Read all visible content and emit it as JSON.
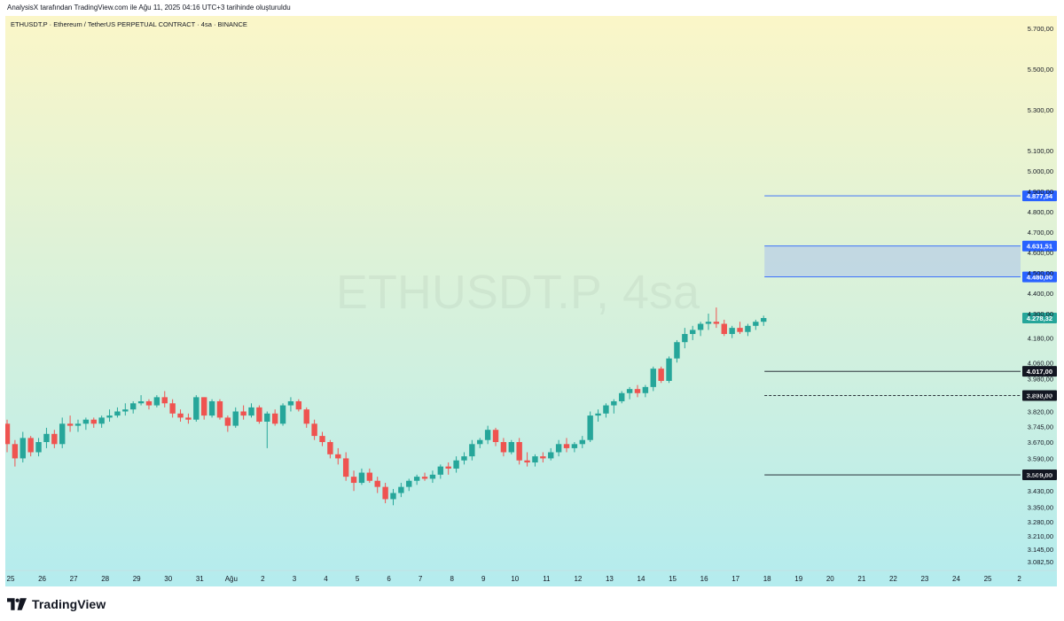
{
  "header": {
    "note": "AnalysisX tarafından TradingView.com ile Ağu 11, 2025 04:16 UTC+3 tarihinde oluşturuldu"
  },
  "symbol": {
    "label": "ETHUSDT.P · Ethereum / TetherUS PERPETUAL CONTRACT · 4sa · BINANCE",
    "watermark": "ETHUSDT.P, 4sa"
  },
  "footer": {
    "brand": "TradingView",
    "logo_icon": "tradingview-logo-icon"
  },
  "colors": {
    "up": "#26a69a",
    "down": "#ef5350",
    "level_blue": "#2962ff",
    "level_black": "#131722",
    "zone_fill": "#b8cfe6",
    "bg_top": "#fbf6c8",
    "bg_bottom": "#b4ecee"
  },
  "chart_data": {
    "type": "candlestick",
    "ylim": [
      3040,
      5760
    ],
    "y_ticks": [
      {
        "v": 5700,
        "label": "5.700,00"
      },
      {
        "v": 5500,
        "label": "5.500,00"
      },
      {
        "v": 5300,
        "label": "5.300,00"
      },
      {
        "v": 5100,
        "label": "5.100,00"
      },
      {
        "v": 5000,
        "label": "5.000,00"
      },
      {
        "v": 4900,
        "label": "4.900,00"
      },
      {
        "v": 4800,
        "label": "4.800,00"
      },
      {
        "v": 4700,
        "label": "4.700,00"
      },
      {
        "v": 4600,
        "label": "4.600,00"
      },
      {
        "v": 4500,
        "label": "4.500,00"
      },
      {
        "v": 4400,
        "label": "4.400,00"
      },
      {
        "v": 4300,
        "label": "4.300,00"
      },
      {
        "v": 4180,
        "label": "4.180,00"
      },
      {
        "v": 4060,
        "label": "4.060,00"
      },
      {
        "v": 3980,
        "label": "3.980,00"
      },
      {
        "v": 3900,
        "label": "3.900,00"
      },
      {
        "v": 3820,
        "label": "3.820,00"
      },
      {
        "v": 3745,
        "label": "3.745,00"
      },
      {
        "v": 3670,
        "label": "3.670,00"
      },
      {
        "v": 3590,
        "label": "3.590,00"
      },
      {
        "v": 3510,
        "label": "3.510,00"
      },
      {
        "v": 3430,
        "label": "3.430,00"
      },
      {
        "v": 3350,
        "label": "3.350,00"
      },
      {
        "v": 3280,
        "label": "3.280,00"
      },
      {
        "v": 3210,
        "label": "3.210,00"
      },
      {
        "v": 3145,
        "label": "3.145,00"
      },
      {
        "v": 3082.5,
        "label": "3.082,50"
      }
    ],
    "x_ticks": [
      "25",
      "26",
      "27",
      "28",
      "29",
      "30",
      "31",
      "Ağu",
      "2",
      "3",
      "4",
      "5",
      "6",
      "7",
      "8",
      "9",
      "10",
      "11",
      "12",
      "13",
      "14",
      "15",
      "16",
      "17",
      "18",
      "19",
      "20",
      "21",
      "22",
      "23",
      "24",
      "25",
      "2"
    ],
    "candles": [
      [
        3760,
        3780,
        3620,
        3660
      ],
      [
        3660,
        3680,
        3550,
        3590
      ],
      [
        3590,
        3720,
        3570,
        3690
      ],
      [
        3690,
        3700,
        3600,
        3620
      ],
      [
        3620,
        3690,
        3600,
        3670
      ],
      [
        3670,
        3740,
        3640,
        3710
      ],
      [
        3710,
        3730,
        3640,
        3660
      ],
      [
        3660,
        3790,
        3640,
        3760
      ],
      [
        3760,
        3800,
        3720,
        3750
      ],
      [
        3750,
        3780,
        3720,
        3760
      ],
      [
        3760,
        3790,
        3730,
        3780
      ],
      [
        3780,
        3790,
        3740,
        3760
      ],
      [
        3760,
        3800,
        3740,
        3790
      ],
      [
        3790,
        3830,
        3770,
        3800
      ],
      [
        3800,
        3840,
        3790,
        3820
      ],
      [
        3820,
        3860,
        3800,
        3830
      ],
      [
        3830,
        3870,
        3810,
        3860
      ],
      [
        3860,
        3900,
        3850,
        3870
      ],
      [
        3870,
        3880,
        3830,
        3850
      ],
      [
        3850,
        3900,
        3840,
        3890
      ],
      [
        3890,
        3920,
        3840,
        3860
      ],
      [
        3860,
        3880,
        3790,
        3810
      ],
      [
        3810,
        3830,
        3770,
        3790
      ],
      [
        3790,
        3810,
        3760,
        3780
      ],
      [
        3780,
        3900,
        3770,
        3890
      ],
      [
        3890,
        3890,
        3780,
        3800
      ],
      [
        3800,
        3880,
        3790,
        3870
      ],
      [
        3870,
        3880,
        3780,
        3790
      ],
      [
        3790,
        3800,
        3720,
        3750
      ],
      [
        3750,
        3840,
        3740,
        3820
      ],
      [
        3820,
        3850,
        3780,
        3800
      ],
      [
        3800,
        3860,
        3790,
        3840
      ],
      [
        3840,
        3850,
        3760,
        3770
      ],
      [
        3770,
        3820,
        3640,
        3810
      ],
      [
        3810,
        3830,
        3750,
        3760
      ],
      [
        3760,
        3860,
        3750,
        3850
      ],
      [
        3850,
        3890,
        3820,
        3870
      ],
      [
        3870,
        3880,
        3820,
        3830
      ],
      [
        3830,
        3840,
        3740,
        3760
      ],
      [
        3760,
        3780,
        3680,
        3700
      ],
      [
        3700,
        3720,
        3650,
        3670
      ],
      [
        3670,
        3680,
        3590,
        3610
      ],
      [
        3610,
        3640,
        3560,
        3590
      ],
      [
        3590,
        3620,
        3480,
        3500
      ],
      [
        3500,
        3530,
        3430,
        3470
      ],
      [
        3470,
        3540,
        3460,
        3520
      ],
      [
        3520,
        3540,
        3470,
        3480
      ],
      [
        3480,
        3500,
        3420,
        3450
      ],
      [
        3450,
        3470,
        3370,
        3390
      ],
      [
        3390,
        3440,
        3360,
        3420
      ],
      [
        3420,
        3470,
        3400,
        3450
      ],
      [
        3450,
        3490,
        3430,
        3480
      ],
      [
        3480,
        3510,
        3460,
        3500
      ],
      [
        3500,
        3520,
        3480,
        3490
      ],
      [
        3490,
        3530,
        3470,
        3510
      ],
      [
        3510,
        3560,
        3490,
        3550
      ],
      [
        3550,
        3570,
        3510,
        3540
      ],
      [
        3540,
        3600,
        3520,
        3580
      ],
      [
        3580,
        3620,
        3560,
        3600
      ],
      [
        3600,
        3680,
        3580,
        3660
      ],
      [
        3660,
        3690,
        3640,
        3680
      ],
      [
        3680,
        3750,
        3660,
        3730
      ],
      [
        3730,
        3740,
        3650,
        3670
      ],
      [
        3670,
        3690,
        3600,
        3620
      ],
      [
        3620,
        3680,
        3610,
        3670
      ],
      [
        3670,
        3690,
        3560,
        3580
      ],
      [
        3580,
        3620,
        3550,
        3570
      ],
      [
        3570,
        3610,
        3550,
        3600
      ],
      [
        3600,
        3620,
        3570,
        3590
      ],
      [
        3590,
        3640,
        3580,
        3620
      ],
      [
        3620,
        3680,
        3600,
        3660
      ],
      [
        3660,
        3690,
        3620,
        3640
      ],
      [
        3640,
        3670,
        3620,
        3660
      ],
      [
        3660,
        3700,
        3640,
        3680
      ],
      [
        3680,
        3820,
        3670,
        3800
      ],
      [
        3800,
        3830,
        3770,
        3810
      ],
      [
        3810,
        3860,
        3790,
        3850
      ],
      [
        3850,
        3880,
        3810,
        3870
      ],
      [
        3870,
        3920,
        3860,
        3910
      ],
      [
        3910,
        3940,
        3880,
        3930
      ],
      [
        3930,
        3950,
        3890,
        3910
      ],
      [
        3910,
        3950,
        3890,
        3940
      ],
      [
        3940,
        4040,
        3920,
        4030
      ],
      [
        4030,
        4040,
        3960,
        3970
      ],
      [
        3970,
        4090,
        3960,
        4080
      ],
      [
        4080,
        4170,
        4060,
        4160
      ],
      [
        4160,
        4230,
        4130,
        4200
      ],
      [
        4200,
        4240,
        4170,
        4220
      ],
      [
        4220,
        4260,
        4190,
        4250
      ],
      [
        4250,
        4300,
        4220,
        4260
      ],
      [
        4260,
        4330,
        4230,
        4250
      ],
      [
        4250,
        4270,
        4190,
        4200
      ],
      [
        4200,
        4240,
        4180,
        4230
      ],
      [
        4230,
        4260,
        4200,
        4210
      ],
      [
        4210,
        4250,
        4190,
        4240
      ],
      [
        4240,
        4270,
        4220,
        4260
      ],
      [
        4260,
        4290,
        4240,
        4278.32
      ]
    ],
    "levels": [
      {
        "price": 4877.54,
        "label": "4.877,54",
        "style": "solid",
        "color": "blue"
      },
      {
        "price": 4631.51,
        "label": "4.631,51",
        "style": "solid",
        "color": "blue"
      },
      {
        "price": 4480.0,
        "label": "4.480,00",
        "style": "solid",
        "color": "blue"
      },
      {
        "price": 4017.0,
        "label": "4.017,00",
        "style": "solid",
        "color": "black"
      },
      {
        "price": 3898.0,
        "label": "3.898,00",
        "style": "dashed",
        "color": "black"
      },
      {
        "price": 3509.0,
        "label": "3.509,00",
        "style": "solid",
        "color": "black"
      }
    ],
    "zone": {
      "from": 4480.0,
      "to": 4631.51
    },
    "last_price": {
      "price": 4278.32,
      "label": "4.278,32"
    }
  }
}
